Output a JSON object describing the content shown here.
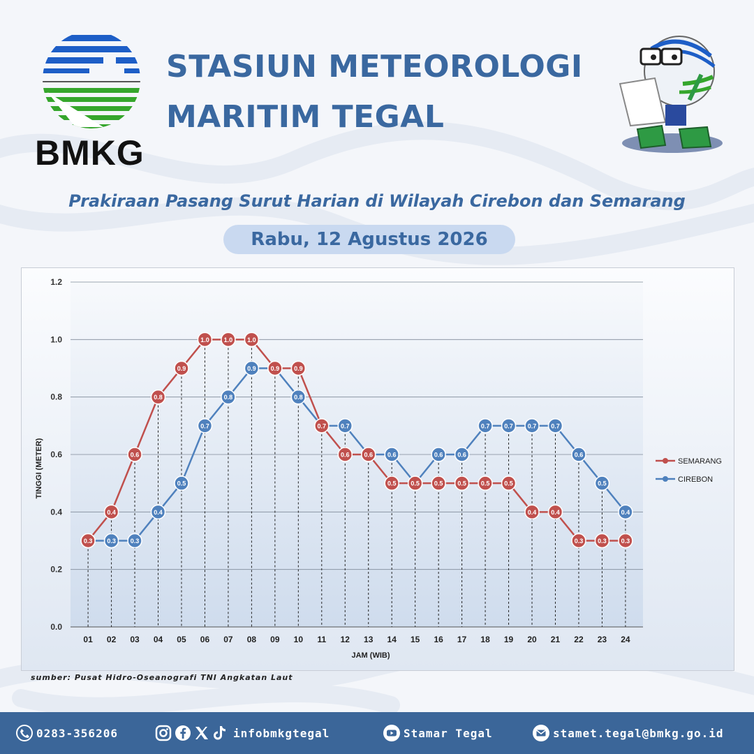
{
  "header": {
    "logo_text": "BMKG",
    "title_line1": "STASIUN METEOROLOGI",
    "title_line2": "MARITIM TEGAL",
    "subtitle": "Prakiraan Pasang Surut Harian di Wilayah Cirebon dan Semarang",
    "date": "Rabu, 12 Agustus 2026"
  },
  "source": "sumber: Pusat Hidro-Oseanografi TNI Angkatan Laut",
  "footer": {
    "phone": "0283-356206",
    "social_handle": "infobmkgtegal",
    "youtube": "Stamar Tegal",
    "email": "stamet.tegal@bmkg.go.id",
    "icons": [
      "phone-icon",
      "instagram-icon",
      "facebook-icon",
      "x-icon",
      "tiktok-icon",
      "youtube-icon",
      "mail-icon"
    ]
  },
  "colors": {
    "title": "#3a68a0",
    "semarang": "#c0504d",
    "cirebon": "#4f81bd",
    "footer_bg": "#3b6699",
    "date_pill": "#c9d9f0"
  },
  "chart_data": {
    "type": "line",
    "title": "",
    "xlabel": "JAM (WIB)",
    "ylabel": "TINGGI (METER)",
    "ylim": [
      0,
      1.2
    ],
    "yticks": [
      "0.0",
      "0.2",
      "0.4",
      "0.6",
      "0.8",
      "1.0",
      "1.2"
    ],
    "grid": true,
    "legend_position": "right",
    "categories": [
      "01",
      "02",
      "03",
      "04",
      "05",
      "06",
      "07",
      "08",
      "09",
      "10",
      "11",
      "12",
      "13",
      "14",
      "15",
      "16",
      "17",
      "18",
      "19",
      "20",
      "21",
      "22",
      "23",
      "24"
    ],
    "series": [
      {
        "name": "SEMARANG",
        "color": "#c0504d",
        "values": [
          0.3,
          0.4,
          0.6,
          0.8,
          0.9,
          1.0,
          1.0,
          1.0,
          0.9,
          0.9,
          0.7,
          0.6,
          0.6,
          0.5,
          0.5,
          0.5,
          0.5,
          0.5,
          0.5,
          0.4,
          0.4,
          0.3,
          0.3,
          0.3
        ]
      },
      {
        "name": "CIREBON",
        "color": "#4f81bd",
        "values": [
          0.3,
          0.3,
          0.3,
          0.4,
          0.5,
          0.7,
          0.8,
          0.9,
          0.9,
          0.8,
          0.7,
          0.7,
          0.6,
          0.6,
          0.5,
          0.6,
          0.6,
          0.7,
          0.7,
          0.7,
          0.7,
          0.6,
          0.5,
          0.4
        ]
      }
    ]
  }
}
